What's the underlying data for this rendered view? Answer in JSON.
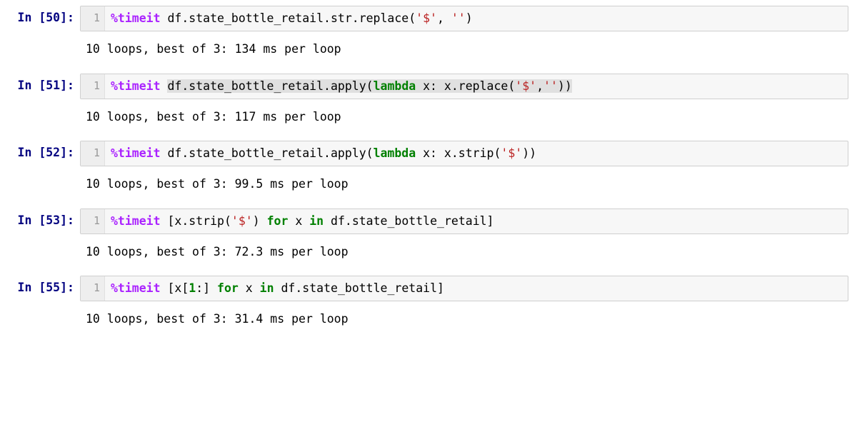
{
  "cells": [
    {
      "prompt": "In [50]:",
      "gutter": "1",
      "magic": "%timeit",
      "code_plain": " df.state_bottle_retail.str.replace(",
      "str1": "'$'",
      "sep": ", ",
      "str2": "''",
      "tail": ")",
      "output": "10 loops, best of 3: 134 ms per loop",
      "highlight": false,
      "kind": "replace"
    },
    {
      "prompt": "In [51]:",
      "gutter": "1",
      "magic": "%timeit",
      "code_plain": " df.state_bottle_retail.apply(",
      "kw": "lambda",
      "mid": " x: x.replace(",
      "str1": "'$'",
      "sep": ",",
      "str2": "''",
      "tail": "))",
      "output": "10 loops, best of 3: 117 ms per loop",
      "highlight": true,
      "kind": "lambda-two"
    },
    {
      "prompt": "In [52]:",
      "gutter": "1",
      "magic": "%timeit",
      "code_plain": " df.state_bottle_retail.apply(",
      "kw": "lambda",
      "mid": " x: x.strip(",
      "str1": "'$'",
      "tail": "))",
      "output": "10 loops, best of 3: 99.5 ms per loop",
      "highlight": false,
      "kind": "lambda-one"
    },
    {
      "prompt": "In [53]:",
      "gutter": "1",
      "magic": "%timeit",
      "pre": " [x.strip(",
      "str1": "'$'",
      "mid": ") ",
      "kw1": "for",
      "mid2": " x ",
      "kw2": "in",
      "tail": " df.state_bottle_retail]",
      "output": "10 loops, best of 3: 72.3 ms per loop",
      "highlight": false,
      "kind": "listcomp-strip"
    },
    {
      "prompt": "In [55]:",
      "gutter": "1",
      "magic": "%timeit",
      "pre": " [x[",
      "num": "1",
      "mid": ":] ",
      "kw1": "for",
      "mid2": " x ",
      "kw2": "in",
      "tail": " df.state_bottle_retail]",
      "output": "10 loops, best of 3: 31.4 ms per loop",
      "highlight": false,
      "kind": "listcomp-slice"
    }
  ],
  "colors": {
    "prompt": "#000080",
    "magic": "#AA22FF",
    "keyword": "#008000",
    "string": "#BA2121",
    "gutter_bg": "#eeeeee",
    "cell_bg": "#f7f7f7",
    "border": "#cfcfcf",
    "highlight_bg": "#e0e0e0",
    "text": "#000000",
    "background": "#ffffff"
  }
}
